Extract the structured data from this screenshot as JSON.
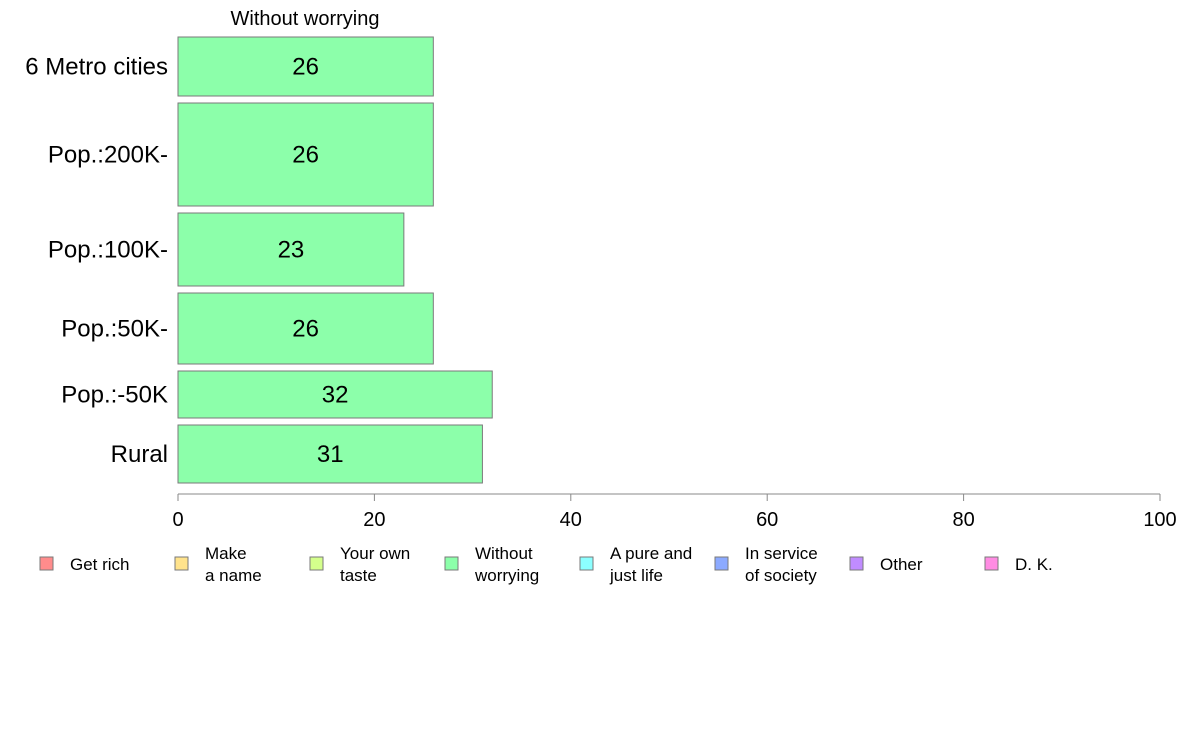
{
  "chart_data": {
    "type": "bar",
    "orientation": "horizontal",
    "title": "Without worrying",
    "categories": [
      "6 Metro cities",
      "Pop.:200K-",
      "Pop.:100K-",
      "Pop.:50K-",
      "Pop.:-50K",
      "Rural"
    ],
    "values": [
      26,
      26,
      23,
      26,
      32,
      31
    ],
    "bar_labels": [
      "26",
      "26",
      "23",
      "26",
      "32",
      "31"
    ],
    "xlim": [
      0,
      100
    ],
    "xticks": [
      0,
      20,
      40,
      60,
      80,
      100
    ],
    "xtick_labels": [
      "0",
      "20",
      "40",
      "60",
      "80",
      "100"
    ],
    "bar_color": "#8cffaa",
    "grid": false,
    "legend_position": "bottom",
    "legend": [
      {
        "lines": [
          "Get rich"
        ],
        "color": "#ff8c8c"
      },
      {
        "lines": [
          "Make",
          "a name"
        ],
        "color": "#ffe38c"
      },
      {
        "lines": [
          "Your own",
          "taste"
        ],
        "color": "#d4ff8c"
      },
      {
        "lines": [
          "Without",
          "worrying"
        ],
        "color": "#8cffaa"
      },
      {
        "lines": [
          "A pure and",
          "just life"
        ],
        "color": "#8cffff"
      },
      {
        "lines": [
          "In service",
          "of society"
        ],
        "color": "#8caaff"
      },
      {
        "lines": [
          "Other"
        ],
        "color": "#c08cff"
      },
      {
        "lines": [
          "D. K."
        ],
        "color": "#ff8ce3"
      }
    ]
  }
}
